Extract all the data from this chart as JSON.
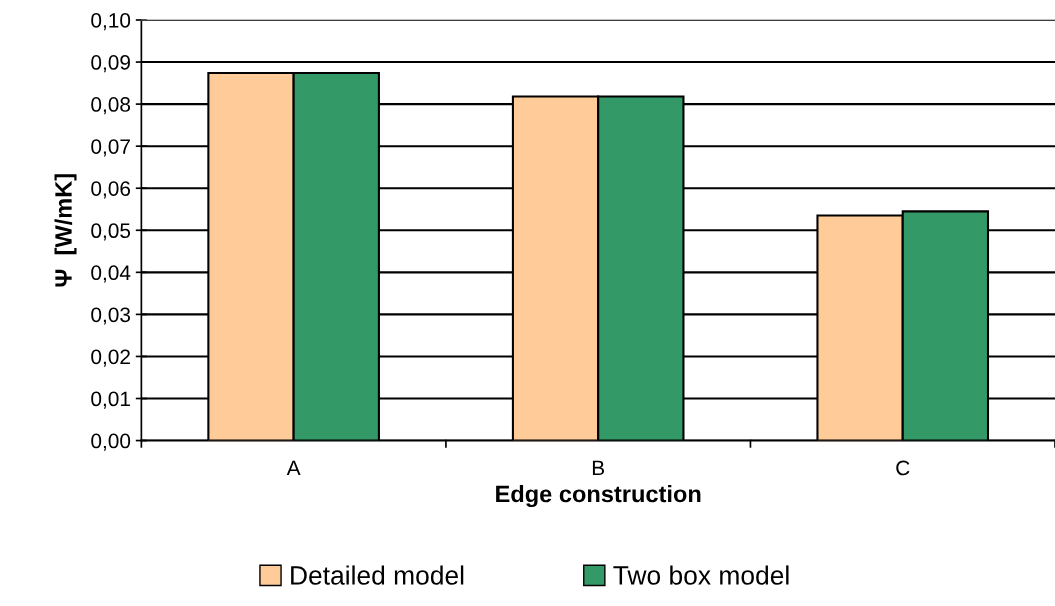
{
  "chart_data": {
    "type": "bar",
    "xlabel": "Edge construction",
    "ylabel": "Ψ  [W/mK]",
    "categories": [
      "A",
      "B",
      "C"
    ],
    "series": [
      {
        "name": "Detailed model",
        "color": "#ffcc99",
        "values": [
          0.0874,
          0.0818,
          0.0535
        ]
      },
      {
        "name": "Two box model",
        "color": "#339966",
        "values": [
          0.0874,
          0.0818,
          0.0545
        ]
      }
    ],
    "ylim": [
      0,
      0.1
    ],
    "yticks": [
      {
        "value": 0,
        "label": "0,00"
      },
      {
        "value": 0.01,
        "label": "0,01"
      },
      {
        "value": 0.02,
        "label": "0,02"
      },
      {
        "value": 0.03,
        "label": "0,03"
      },
      {
        "value": 0.04,
        "label": "0,04"
      },
      {
        "value": 0.05,
        "label": "0,05"
      },
      {
        "value": 0.06,
        "label": "0,06"
      },
      {
        "value": 0.07,
        "label": "0,07"
      },
      {
        "value": 0.08,
        "label": "0,08"
      },
      {
        "value": 0.09,
        "label": "0,09"
      },
      {
        "value": 0.1,
        "label": "0,10"
      }
    ],
    "grid": "y",
    "legend": "bottom"
  }
}
